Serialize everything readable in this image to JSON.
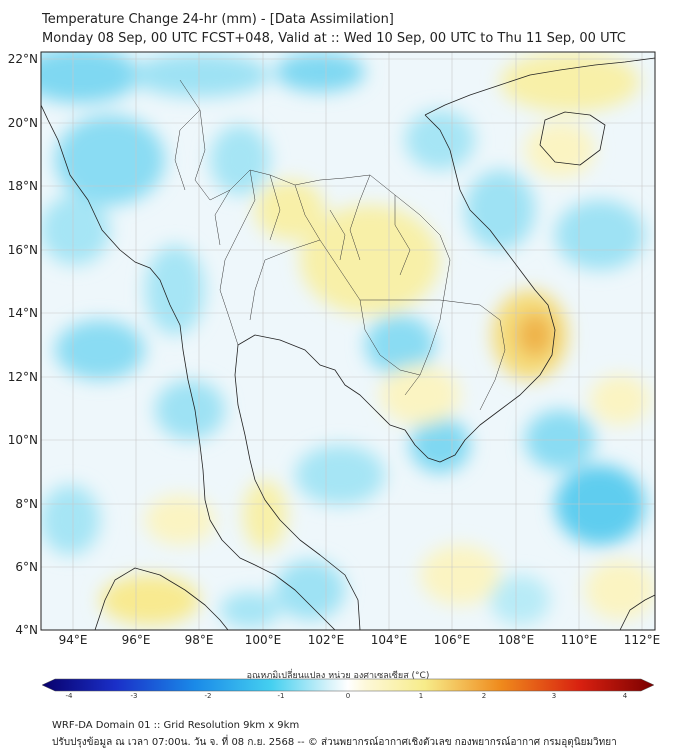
{
  "title": {
    "line1": "Temperature Change 24-hr (mm) - [Data Assimilation]",
    "line2": "Monday 08 Sep, 00 UTC FCST+048, Valid at :: Wed 10 Sep, 00 UTC to Thu 11 Sep, 00 UTC"
  },
  "axes": {
    "lat_labels": [
      "22°N",
      "20°N",
      "18°N",
      "16°N",
      "14°N",
      "12°N",
      "10°N",
      "8°N",
      "6°N",
      "4°N"
    ],
    "lon_labels": [
      "94°E",
      "96°E",
      "98°E",
      "100°E",
      "102°E",
      "104°E",
      "106°E",
      "108°E",
      "110°E",
      "112°E"
    ]
  },
  "colorbar": {
    "title": "อุณหภูมิเปลี่ยนแปลง หน่วย องศาเซลเซียส (°C)",
    "ticks": [
      "-4",
      "-3",
      "-2",
      "-1",
      "0",
      "1",
      "2",
      "3",
      "4"
    ],
    "min": -4,
    "max": 4,
    "colors": {
      "cold_extreme": "#08006b",
      "cold": "#1a5be8",
      "cool": "#29c4ee",
      "neutral": "#ffffff",
      "warm": "#f7ec8a",
      "hot": "#ef8a1c",
      "hot_extreme": "#7a0000"
    }
  },
  "footer": {
    "line1": "WRF-DA Domain 01 :: Grid Resolution 9km x 9km",
    "line2": "ปรับปรุงข้อมูล ณ เวลา 07:00น. วัน จ. ที่ 08 ก.ย. 2568 -- © ส่วนพยากรณ์อากาศเชิงตัวเลข กองพยากรณ์อากาศ กรมอุตุนิยมวิทยา"
  }
}
